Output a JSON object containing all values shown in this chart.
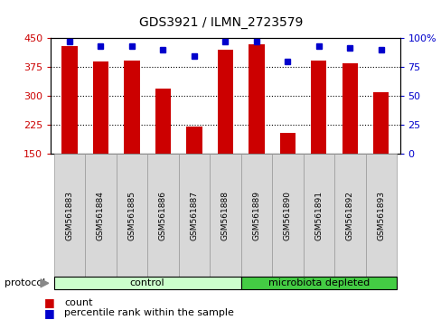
{
  "title": "GDS3921 / ILMN_2723579",
  "samples": [
    "GSM561883",
    "GSM561884",
    "GSM561885",
    "GSM561886",
    "GSM561887",
    "GSM561888",
    "GSM561889",
    "GSM561890",
    "GSM561891",
    "GSM561892",
    "GSM561893"
  ],
  "counts": [
    430,
    390,
    392,
    320,
    220,
    420,
    435,
    205,
    392,
    385,
    310
  ],
  "percentiles": [
    97,
    93,
    93,
    90,
    85,
    97,
    97,
    80,
    93,
    92,
    90
  ],
  "ylim_left": [
    150,
    450
  ],
  "ylim_right": [
    0,
    100
  ],
  "yticks_left": [
    150,
    225,
    300,
    375,
    450
  ],
  "yticks_right": [
    0,
    25,
    50,
    75,
    100
  ],
  "bar_color": "#cc0000",
  "marker_color": "#0000cc",
  "bar_width": 0.5,
  "groups": [
    {
      "label": "control",
      "indices": [
        0,
        1,
        2,
        3,
        4,
        5
      ],
      "color": "#ccffcc"
    },
    {
      "label": "microbiota depleted",
      "indices": [
        6,
        7,
        8,
        9,
        10
      ],
      "color": "#44cc44"
    }
  ],
  "protocol_label": "protocol",
  "legend_count_label": "count",
  "legend_pct_label": "percentile rank within the sample",
  "bg_color": "#ffffff",
  "plot_bg": "#ffffff",
  "label_bg": "#d8d8d8",
  "left_tick_color": "#cc0000",
  "right_tick_color": "#0000cc",
  "right_axis_label": "100%"
}
